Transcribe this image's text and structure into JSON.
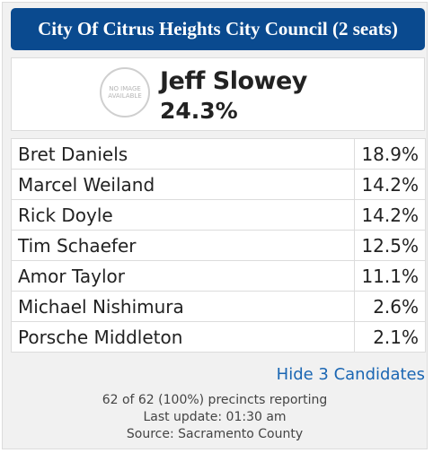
{
  "header": {
    "title": "City Of Citrus Heights City Council (2 seats)"
  },
  "leader": {
    "photo_text": "NO IMAGE AVAILABLE",
    "name": "Jeff Slowey",
    "percent": "24.3%"
  },
  "candidates": [
    {
      "name": "Bret Daniels",
      "percent": "18.9%"
    },
    {
      "name": "Marcel Weiland",
      "percent": "14.2%"
    },
    {
      "name": "Rick Doyle",
      "percent": "14.2%"
    },
    {
      "name": "Tim Schaefer",
      "percent": "12.5%"
    },
    {
      "name": "Amor Taylor",
      "percent": "11.1%"
    },
    {
      "name": "Michael Nishimura",
      "percent": "2.6%"
    },
    {
      "name": "Porsche Middleton",
      "percent": "2.1%"
    }
  ],
  "toggle_label": "Hide 3 Candidates",
  "footer": {
    "precincts": "62 of 62 (100%) precincts reporting",
    "last_update": "Last update: 01:30 am",
    "source": "Source: Sacramento County"
  },
  "colors": {
    "header_bg": "#0a4a8f",
    "link": "#1a66b3"
  }
}
